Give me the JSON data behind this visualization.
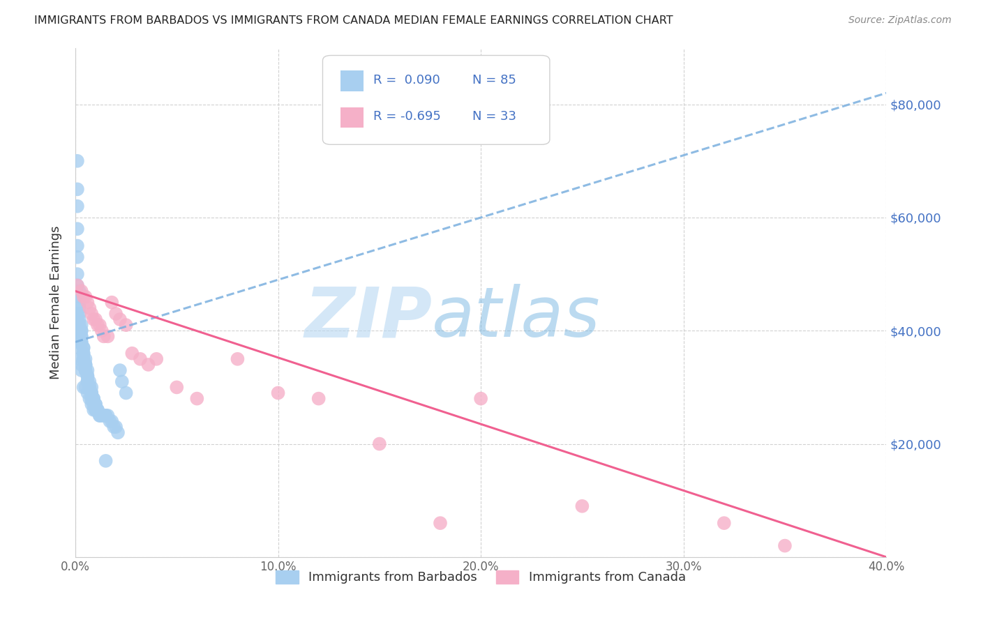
{
  "title": "IMMIGRANTS FROM BARBADOS VS IMMIGRANTS FROM CANADA MEDIAN FEMALE EARNINGS CORRELATION CHART",
  "source": "Source: ZipAtlas.com",
  "ylabel": "Median Female Earnings",
  "xlim": [
    0.0,
    0.4
  ],
  "ylim": [
    0,
    90000
  ],
  "yticks": [
    0,
    20000,
    40000,
    60000,
    80000
  ],
  "ytick_labels_right": [
    "",
    "$20,000",
    "$40,000",
    "$60,000",
    "$80,000"
  ],
  "xticks": [
    0.0,
    0.1,
    0.2,
    0.3,
    0.4
  ],
  "xtick_labels": [
    "0.0%",
    "10.0%",
    "20.0%",
    "30.0%",
    "40.0%"
  ],
  "background_color": "#ffffff",
  "series": [
    {
      "name": "Immigrants from Barbados",
      "R": 0.09,
      "N": 85,
      "color": "#a8cff0",
      "trend_color": "#7aafdf",
      "trend_dashed": true,
      "x": [
        0.001,
        0.001,
        0.001,
        0.001,
        0.001,
        0.001,
        0.001,
        0.001,
        0.002,
        0.002,
        0.002,
        0.002,
        0.002,
        0.002,
        0.002,
        0.003,
        0.003,
        0.003,
        0.003,
        0.003,
        0.003,
        0.003,
        0.004,
        0.004,
        0.004,
        0.004,
        0.004,
        0.004,
        0.005,
        0.005,
        0.005,
        0.005,
        0.005,
        0.005,
        0.006,
        0.006,
        0.006,
        0.006,
        0.006,
        0.007,
        0.007,
        0.007,
        0.007,
        0.008,
        0.008,
        0.008,
        0.008,
        0.009,
        0.009,
        0.009,
        0.01,
        0.01,
        0.01,
        0.011,
        0.011,
        0.012,
        0.012,
        0.013,
        0.014,
        0.015,
        0.015,
        0.016,
        0.017,
        0.018,
        0.019,
        0.02,
        0.021,
        0.022,
        0.023,
        0.025,
        0.001,
        0.001,
        0.001,
        0.002,
        0.002,
        0.003,
        0.003,
        0.004,
        0.005,
        0.006,
        0.007,
        0.008,
        0.009,
        0.01,
        0.015
      ],
      "y": [
        70000,
        65000,
        62000,
        58000,
        55000,
        53000,
        50000,
        48000,
        47000,
        46000,
        45000,
        44000,
        43000,
        42000,
        41000,
        41000,
        40000,
        40000,
        39000,
        39000,
        38000,
        38000,
        37000,
        37000,
        36000,
        36000,
        35000,
        35000,
        35000,
        34000,
        34000,
        34000,
        33000,
        33000,
        33000,
        32000,
        32000,
        31000,
        31000,
        31000,
        30000,
        30000,
        30000,
        30000,
        29000,
        29000,
        28000,
        28000,
        28000,
        27000,
        27000,
        27000,
        26000,
        26000,
        26000,
        25000,
        25000,
        25000,
        25000,
        25000,
        25000,
        25000,
        24000,
        24000,
        23000,
        23000,
        22000,
        33000,
        31000,
        29000,
        43000,
        40000,
        38000,
        37000,
        35000,
        34000,
        33000,
        30000,
        30000,
        29000,
        28000,
        27000,
        26000,
        26000,
        17000
      ]
    },
    {
      "name": "Immigrants from Canada",
      "R": -0.695,
      "N": 33,
      "color": "#f5b0c8",
      "trend_color": "#f06090",
      "trend_dashed": false,
      "x": [
        0.001,
        0.003,
        0.004,
        0.005,
        0.006,
        0.007,
        0.008,
        0.009,
        0.01,
        0.011,
        0.012,
        0.013,
        0.014,
        0.016,
        0.018,
        0.02,
        0.022,
        0.025,
        0.028,
        0.032,
        0.036,
        0.04,
        0.05,
        0.06,
        0.08,
        0.1,
        0.12,
        0.15,
        0.18,
        0.2,
        0.25,
        0.32,
        0.35
      ],
      "y": [
        48000,
        47000,
        46000,
        46000,
        45000,
        44000,
        43000,
        42000,
        42000,
        41000,
        41000,
        40000,
        39000,
        39000,
        45000,
        43000,
        42000,
        41000,
        36000,
        35000,
        34000,
        35000,
        30000,
        28000,
        35000,
        29000,
        28000,
        20000,
        6000,
        28000,
        9000,
        6000,
        2000
      ]
    }
  ],
  "blue_trend_endpoints": [
    [
      0.0,
      38000
    ],
    [
      0.4,
      82000
    ]
  ],
  "pink_trend_endpoints": [
    [
      0.0,
      47000
    ],
    [
      0.4,
      0
    ]
  ]
}
